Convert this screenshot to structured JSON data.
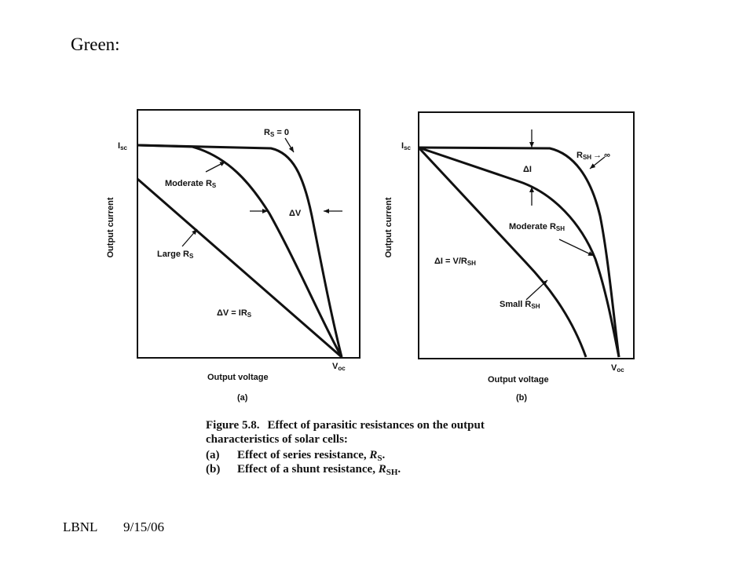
{
  "slide": {
    "title": "Green:",
    "footer_left": "LBNL",
    "footer_date": "9/15/06"
  },
  "panel_a": {
    "y_label": "Output current",
    "x_label": "Output voltage",
    "isc": "I",
    "isc_sub": "sc",
    "voc": "V",
    "voc_sub": "oc",
    "tag": "(a)",
    "rs0": "R",
    "rs0_sub": "S",
    "rs0_tail": " = 0",
    "moderate": "Moderate R",
    "moderate_sub": "S",
    "large": "Large R",
    "large_sub": "S",
    "dv": "ΔV",
    "dv_eq": "ΔV = IR",
    "dv_eq_sub": "S"
  },
  "panel_b": {
    "y_label": "Output current",
    "x_label": "Output voltage",
    "isc": "I",
    "isc_sub": "sc",
    "voc": "V",
    "voc_sub": "oc",
    "tag": "(b)",
    "rsh_inf": "R",
    "rsh_inf_sub": "SH",
    "rsh_inf_tail": "→ ∞",
    "di": "ΔI",
    "moderate": "Moderate R",
    "moderate_sub": "SH",
    "di_eq": "ΔI = V/R",
    "di_eq_sub": "SH",
    "small": "Small R",
    "small_sub": "SH"
  },
  "caption": {
    "fig_num": "Figure 5.8.",
    "line1_rest": "Effect of parasitic resistances on the output",
    "line2": "characteristics of solar cells:",
    "item_a_tag": "(a)",
    "item_a_text": "Effect of series resistance, ",
    "item_a_sym": "R",
    "item_a_sub": "S",
    "item_a_end": ".",
    "item_b_tag": "(b)",
    "item_b_text": "Effect of a shunt resistance, ",
    "item_b_sym": "R",
    "item_b_sub": "SH",
    "item_b_end": "."
  }
}
